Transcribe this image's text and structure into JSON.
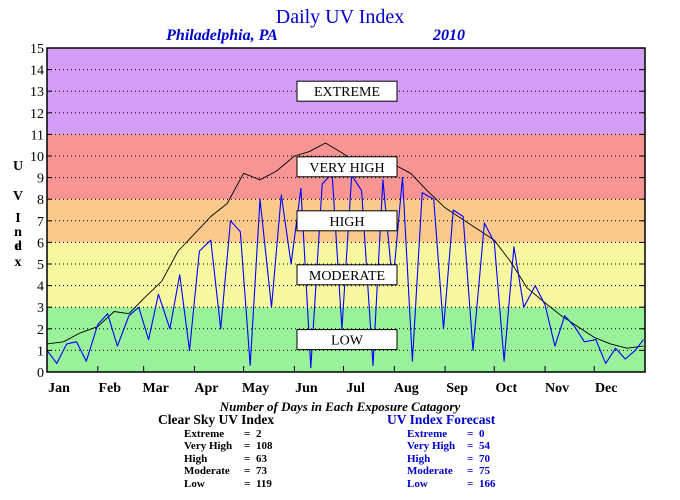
{
  "chart_data": {
    "type": "line",
    "title": "Daily UV Index",
    "location": "Philadelphia, PA",
    "year": "2010",
    "ylabel": "UV Index",
    "ylim": [
      0,
      15
    ],
    "yticks": [
      "0",
      "1",
      "2",
      "3",
      "4",
      "5",
      "6",
      "7",
      "8",
      "9",
      "10",
      "11",
      "12",
      "13",
      "14",
      "15"
    ],
    "xlim": [
      0,
      365
    ],
    "months": [
      "Jan",
      "Feb",
      "Mar",
      "Apr",
      "May",
      "Jun",
      "Jul",
      "Aug",
      "Sep",
      "Oct",
      "Nov",
      "Dec"
    ],
    "bands": [
      {
        "name": "LOW",
        "from": 0,
        "to": 3,
        "color": "#99f299"
      },
      {
        "name": "MODERATE",
        "from": 3,
        "to": 6,
        "color": "#f7f7a0"
      },
      {
        "name": "HIGH",
        "from": 6,
        "to": 8,
        "color": "#fcc98c"
      },
      {
        "name": "VERY HIGH",
        "from": 8,
        "to": 11,
        "color": "#f79494"
      },
      {
        "name": "EXTREME",
        "from": 11,
        "to": 15,
        "color": "#d49ef7"
      }
    ],
    "series": [
      {
        "name": "Clear Sky UV Index",
        "color": "#000000",
        "x": [
          0,
          10,
          20,
          31,
          41,
          50,
          59,
          70,
          80,
          90,
          100,
          110,
          120,
          130,
          140,
          151,
          160,
          170,
          181,
          190,
          200,
          212,
          222,
          232,
          243,
          253,
          263,
          273,
          283,
          293,
          304,
          314,
          324,
          334,
          344,
          354,
          364
        ],
        "y": [
          1.3,
          1.4,
          1.8,
          2.1,
          2.8,
          2.7,
          3.4,
          4.2,
          5.6,
          6.4,
          7.2,
          7.8,
          9.2,
          8.9,
          9.3,
          10.0,
          10.2,
          10.6,
          10.1,
          9.6,
          9.8,
          9.6,
          9.2,
          8.4,
          7.6,
          7.1,
          6.6,
          6.1,
          5.1,
          3.9,
          3.2,
          2.6,
          2.1,
          1.6,
          1.3,
          1.1,
          1.2
        ]
      },
      {
        "name": "UV Index Forecast",
        "color": "#0000ff",
        "x": [
          0,
          6,
          12,
          18,
          24,
          31,
          37,
          43,
          50,
          56,
          62,
          68,
          75,
          81,
          87,
          93,
          100,
          106,
          112,
          118,
          124,
          130,
          137,
          143,
          149,
          155,
          161,
          168,
          174,
          180,
          186,
          192,
          199,
          205,
          211,
          217,
          223,
          229,
          236,
          242,
          248,
          254,
          260,
          267,
          273,
          279,
          285,
          291,
          298,
          304,
          310,
          316,
          322,
          328,
          335,
          341,
          347,
          353,
          359,
          364
        ],
        "y": [
          1.0,
          0.4,
          1.3,
          1.4,
          0.5,
          2.2,
          2.7,
          1.2,
          2.6,
          3.0,
          1.5,
          3.6,
          2.0,
          4.5,
          1.0,
          5.6,
          6.1,
          2.0,
          7.0,
          6.5,
          0.3,
          8.0,
          3.0,
          8.2,
          5.0,
          8.5,
          0.2,
          8.7,
          9.2,
          2.0,
          9.1,
          8.4,
          0.3,
          8.9,
          4.0,
          9.0,
          0.5,
          8.3,
          8.0,
          2.0,
          7.5,
          7.2,
          1.0,
          6.9,
          6.0,
          0.5,
          5.8,
          3.0,
          4.0,
          3.1,
          1.2,
          2.6,
          2.1,
          1.4,
          1.5,
          0.4,
          1.1,
          0.6,
          1.0,
          1.5
        ]
      }
    ]
  },
  "caption": "Number of Days in Each Exposure Catagory",
  "clear_sky": {
    "heading": "Clear Sky UV Index",
    "rows": [
      {
        "name": "Extreme",
        "eq": "=",
        "value": "2"
      },
      {
        "name": "Very High",
        "eq": "=",
        "value": "108"
      },
      {
        "name": "High",
        "eq": "=",
        "value": "63"
      },
      {
        "name": "Moderate",
        "eq": "=",
        "value": "73"
      },
      {
        "name": "Low",
        "eq": "=",
        "value": "119"
      }
    ]
  },
  "forecast": {
    "heading": "UV Index Forecast",
    "rows": [
      {
        "name": "Extreme",
        "eq": "=",
        "value": "0"
      },
      {
        "name": "Very High",
        "eq": "=",
        "value": "54"
      },
      {
        "name": "High",
        "eq": "=",
        "value": "70"
      },
      {
        "name": "Moderate",
        "eq": "=",
        "value": "75"
      },
      {
        "name": "Low",
        "eq": "=",
        "value": "166"
      }
    ]
  }
}
